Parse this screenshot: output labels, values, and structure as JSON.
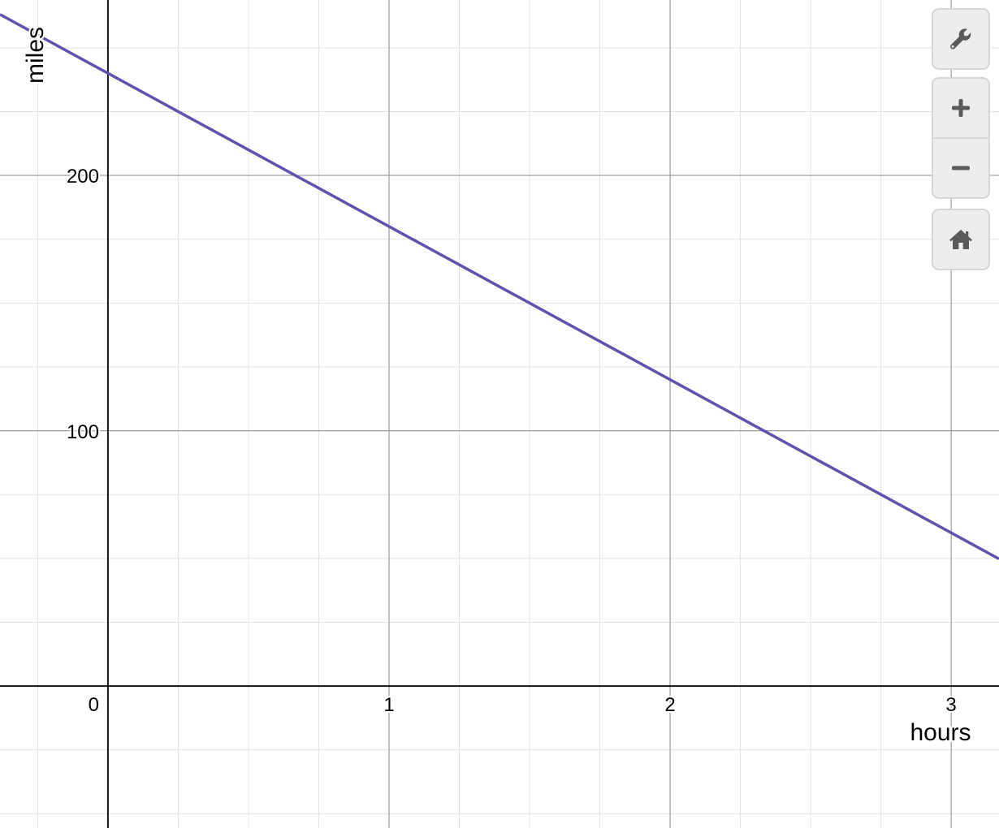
{
  "chart_data": {
    "type": "line",
    "xlabel": "hours",
    "ylabel": "miles",
    "xlim": [
      -0.384,
      3.17
    ],
    "ylim": [
      -55.6,
      268.7
    ],
    "x_ticks": [
      0,
      1,
      2,
      3
    ],
    "y_ticks": [
      100,
      200
    ],
    "x_tick_labels": [
      "0",
      "1",
      "2",
      "3"
    ],
    "y_tick_labels": [
      "100",
      "200"
    ],
    "x_minor_step": 0.25,
    "y_minor_step": 25,
    "grid": true,
    "series": [
      {
        "equation": "y = 240 - 60x",
        "slope": -60,
        "intercept": 240,
        "color": "#6351ad"
      }
    ]
  },
  "toolbar": {
    "buttons": [
      {
        "icon": "wrench-icon"
      },
      {
        "icon": "plus-icon"
      },
      {
        "icon": "minus-icon"
      },
      {
        "icon": "home-icon"
      }
    ]
  }
}
